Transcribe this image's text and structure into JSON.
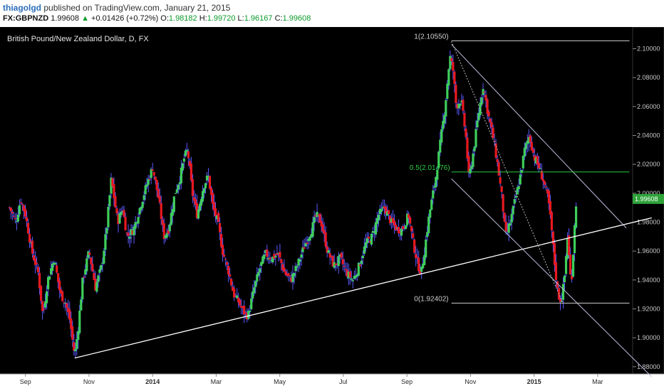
{
  "header": {
    "author": "thiagolgd",
    "published_text": "published on TradingView.com, January 21, 2015",
    "symbol": "FX:GBPNZD",
    "last": "1.99608",
    "arrow": "▲",
    "change": "+0.01426 (+0.72%)",
    "o_label": "O:",
    "o_val": "1.98182",
    "h_label": "H:",
    "h_val": "1.99720",
    "l_label": "L:",
    "l_val": "1.96167",
    "c_label": "C:",
    "c_val": "1.99608"
  },
  "chart_data": {
    "type": "line",
    "title": "British Pound/New Zealand Dollar, D, FX",
    "ylim": [
      1.875,
      2.115
    ],
    "yticks": [
      "2.10000",
      "2.08000",
      "2.06000",
      "2.04000",
      "2.02000",
      "2.00000",
      "1.98000",
      "1.96000",
      "1.94000",
      "1.92000",
      "1.90000",
      "1.88000"
    ],
    "xticks": [
      {
        "label": "Sep",
        "t": 0.5,
        "bold": false
      },
      {
        "label": "Nov",
        "t": 2.5,
        "bold": false
      },
      {
        "label": "2014",
        "t": 4.5,
        "bold": true
      },
      {
        "label": "Mar",
        "t": 6.5,
        "bold": false
      },
      {
        "label": "May",
        "t": 8.5,
        "bold": false
      },
      {
        "label": "Jul",
        "t": 10.5,
        "bold": false
      },
      {
        "label": "Sep",
        "t": 12.5,
        "bold": false
      },
      {
        "label": "Nov",
        "t": 14.5,
        "bold": false
      },
      {
        "label": "2015",
        "t": 16.5,
        "bold": true
      },
      {
        "label": "Mar",
        "t": 18.5,
        "bold": false
      }
    ],
    "last_price_label": "1.99608",
    "last_price": 1.99608,
    "series": [
      {
        "values": [
          [
            0.0,
            1.99
          ],
          [
            0.2,
            1.98
          ],
          [
            0.35,
            1.996
          ],
          [
            0.5,
            1.985
          ],
          [
            0.7,
            1.96
          ],
          [
            0.9,
            1.945
          ],
          [
            1.05,
            1.915
          ],
          [
            1.2,
            1.94
          ],
          [
            1.4,
            1.955
          ],
          [
            1.6,
            1.93
          ],
          [
            1.75,
            1.925
          ],
          [
            1.9,
            1.912
          ],
          [
            2.0,
            1.895
          ],
          [
            2.05,
            1.888
          ],
          [
            2.15,
            1.905
          ],
          [
            2.3,
            1.94
          ],
          [
            2.5,
            1.96
          ],
          [
            2.7,
            1.935
          ],
          [
            2.9,
            1.95
          ],
          [
            3.05,
            1.975
          ],
          [
            3.2,
            2.01
          ],
          [
            3.4,
            1.98
          ],
          [
            3.55,
            1.99
          ],
          [
            3.7,
            1.97
          ],
          [
            3.9,
            1.975
          ],
          [
            4.1,
            1.99
          ],
          [
            4.3,
            2.005
          ],
          [
            4.5,
            2.018
          ],
          [
            4.7,
            1.995
          ],
          [
            4.85,
            1.97
          ],
          [
            5.0,
            1.975
          ],
          [
            5.2,
            2.0
          ],
          [
            5.35,
            2.01
          ],
          [
            5.5,
            2.025
          ],
          [
            5.6,
            2.03
          ],
          [
            5.75,
            2.0
          ],
          [
            5.9,
            1.985
          ],
          [
            6.1,
            2.005
          ],
          [
            6.25,
            2.012
          ],
          [
            6.4,
            1.99
          ],
          [
            6.55,
            1.98
          ],
          [
            6.7,
            1.96
          ],
          [
            6.9,
            1.945
          ],
          [
            7.05,
            1.93
          ],
          [
            7.2,
            1.925
          ],
          [
            7.35,
            1.918
          ],
          [
            7.5,
            1.915
          ],
          [
            7.7,
            1.935
          ],
          [
            7.9,
            1.95
          ],
          [
            8.05,
            1.958
          ],
          [
            8.25,
            1.955
          ],
          [
            8.45,
            1.958
          ],
          [
            8.65,
            1.945
          ],
          [
            8.85,
            1.94
          ],
          [
            9.05,
            1.95
          ],
          [
            9.3,
            1.965
          ],
          [
            9.5,
            1.975
          ],
          [
            9.65,
            1.985
          ],
          [
            9.8,
            1.98
          ],
          [
            10.0,
            1.96
          ],
          [
            10.2,
            1.95
          ],
          [
            10.4,
            1.955
          ],
          [
            10.6,
            1.945
          ],
          [
            10.8,
            1.94
          ],
          [
            11.0,
            1.95
          ],
          [
            11.2,
            1.965
          ],
          [
            11.4,
            1.97
          ],
          [
            11.6,
            1.985
          ],
          [
            11.8,
            1.99
          ],
          [
            12.0,
            1.98
          ],
          [
            12.2,
            1.975
          ],
          [
            12.35,
            1.975
          ],
          [
            12.55,
            1.985
          ],
          [
            12.7,
            1.965
          ],
          [
            12.85,
            1.95
          ],
          [
            12.95,
            1.945
          ],
          [
            13.05,
            1.96
          ],
          [
            13.2,
            1.985
          ],
          [
            13.4,
            2.01
          ],
          [
            13.55,
            2.035
          ],
          [
            13.7,
            2.06
          ],
          [
            13.85,
            2.095
          ],
          [
            13.95,
            2.085
          ],
          [
            14.05,
            2.06
          ],
          [
            14.2,
            2.065
          ],
          [
            14.35,
            2.04
          ],
          [
            14.45,
            2.01
          ],
          [
            14.6,
            2.03
          ],
          [
            14.75,
            2.055
          ],
          [
            14.9,
            2.075
          ],
          [
            15.05,
            2.055
          ],
          [
            15.2,
            2.04
          ],
          [
            15.35,
            2.02
          ],
          [
            15.5,
            1.995
          ],
          [
            15.6,
            1.97
          ],
          [
            15.75,
            1.98
          ],
          [
            15.9,
            1.995
          ],
          [
            16.05,
            2.01
          ],
          [
            16.2,
            2.03
          ],
          [
            16.35,
            2.04
          ],
          [
            16.5,
            2.025
          ],
          [
            16.65,
            2.018
          ],
          [
            16.8,
            2.008
          ],
          [
            16.95,
            1.995
          ],
          [
            17.05,
            1.975
          ],
          [
            17.15,
            1.95
          ],
          [
            17.25,
            1.93
          ],
          [
            17.35,
            1.925
          ],
          [
            17.45,
            1.94
          ],
          [
            17.55,
            1.97
          ],
          [
            17.65,
            1.94
          ],
          [
            17.7,
            1.945
          ],
          [
            17.78,
            1.982
          ],
          [
            17.85,
            1.996
          ]
        ]
      }
    ]
  },
  "annotations": {
    "fib_top_label": "1(2.10550)",
    "fib_top_value": 2.1055,
    "fib_mid_label": "0.5(2.01476)",
    "fib_mid_value": 2.01476,
    "fib_bottom_label": "0(1.92402)",
    "fib_bottom_value": 1.92402,
    "trendline": [
      [
        2.05,
        1.886
      ],
      [
        20.2,
        1.983
      ]
    ],
    "channel_upper": [
      [
        13.9,
        2.103
      ],
      [
        19.4,
        1.976
      ]
    ],
    "channel_lower": [
      [
        13.9,
        2.01
      ],
      [
        20.2,
        1.873
      ]
    ],
    "fib_diagonal": [
      [
        13.9,
        2.105
      ],
      [
        17.4,
        1.924
      ]
    ],
    "colors": {
      "up": "#3fcf5a",
      "down": "#e8191f",
      "wick": "#5a5aff",
      "trend": "#ffffff",
      "fib_mid": "#2ecc40",
      "channel": "#c0c0e0",
      "last_bg": "#2fa33a"
    }
  }
}
